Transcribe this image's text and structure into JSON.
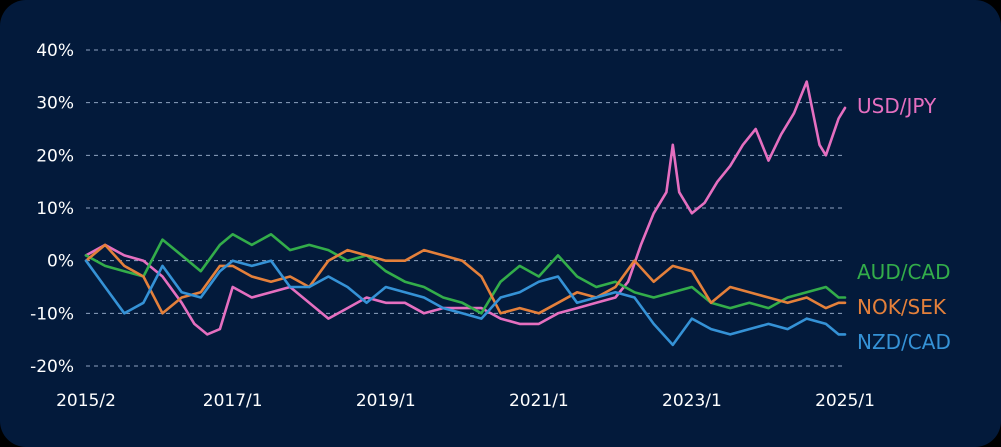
{
  "chart_data": {
    "type": "line",
    "title": "",
    "xlabel": "",
    "ylabel": "",
    "x_ticks": [
      "2015/2",
      "2017/1",
      "2019/1",
      "2021/1",
      "2023/1",
      "2025/1"
    ],
    "y_ticks": [
      "40%",
      "30%",
      "20%",
      "10%",
      "0%",
      "-10%",
      "-20%"
    ],
    "y_tick_values": [
      40,
      30,
      20,
      10,
      0,
      -10,
      -20
    ],
    "ylim": [
      -20,
      40
    ],
    "xlim": [
      "2015-02",
      "2025-01"
    ],
    "grid": true,
    "legend": "inline-right",
    "series": [
      {
        "name": "USD/JPY",
        "color": "#e56fc0",
        "points": [
          [
            "2015-02",
            1
          ],
          [
            "2015-05",
            3
          ],
          [
            "2015-08",
            1
          ],
          [
            "2015-11",
            0
          ],
          [
            "2016-02",
            -3
          ],
          [
            "2016-05",
            -8
          ],
          [
            "2016-07",
            -12
          ],
          [
            "2016-09",
            -14
          ],
          [
            "2016-11",
            -13
          ],
          [
            "2017-01",
            -5
          ],
          [
            "2017-04",
            -7
          ],
          [
            "2017-07",
            -6
          ],
          [
            "2017-10",
            -5
          ],
          [
            "2018-01",
            -8
          ],
          [
            "2018-04",
            -11
          ],
          [
            "2018-07",
            -9
          ],
          [
            "2018-10",
            -7
          ],
          [
            "2019-01",
            -8
          ],
          [
            "2019-04",
            -8
          ],
          [
            "2019-07",
            -10
          ],
          [
            "2019-10",
            -9
          ],
          [
            "2020-01",
            -9
          ],
          [
            "2020-04",
            -9
          ],
          [
            "2020-07",
            -11
          ],
          [
            "2020-10",
            -12
          ],
          [
            "2021-01",
            -12
          ],
          [
            "2021-04",
            -10
          ],
          [
            "2021-07",
            -9
          ],
          [
            "2021-10",
            -8
          ],
          [
            "2022-01",
            -7
          ],
          [
            "2022-03",
            -4
          ],
          [
            "2022-05",
            3
          ],
          [
            "2022-07",
            9
          ],
          [
            "2022-09",
            13
          ],
          [
            "2022-10",
            22
          ],
          [
            "2022-11",
            13
          ],
          [
            "2023-01",
            9
          ],
          [
            "2023-03",
            11
          ],
          [
            "2023-05",
            15
          ],
          [
            "2023-07",
            18
          ],
          [
            "2023-09",
            22
          ],
          [
            "2023-11",
            25
          ],
          [
            "2024-01",
            19
          ],
          [
            "2024-03",
            24
          ],
          [
            "2024-05",
            28
          ],
          [
            "2024-07",
            34
          ],
          [
            "2024-09",
            22
          ],
          [
            "2024-10",
            20
          ],
          [
            "2024-12",
            27
          ],
          [
            "2025-01",
            29
          ]
        ]
      },
      {
        "name": "AUD/CAD",
        "color": "#33ad4a",
        "points": [
          [
            "2015-02",
            1
          ],
          [
            "2015-05",
            -1
          ],
          [
            "2015-08",
            -2
          ],
          [
            "2015-11",
            -3
          ],
          [
            "2016-02",
            4
          ],
          [
            "2016-05",
            1
          ],
          [
            "2016-08",
            -2
          ],
          [
            "2016-11",
            3
          ],
          [
            "2017-01",
            5
          ],
          [
            "2017-04",
            3
          ],
          [
            "2017-07",
            5
          ],
          [
            "2017-10",
            2
          ],
          [
            "2018-01",
            3
          ],
          [
            "2018-04",
            2
          ],
          [
            "2018-07",
            0
          ],
          [
            "2018-10",
            1
          ],
          [
            "2019-01",
            -2
          ],
          [
            "2019-04",
            -4
          ],
          [
            "2019-07",
            -5
          ],
          [
            "2019-10",
            -7
          ],
          [
            "2020-01",
            -8
          ],
          [
            "2020-04",
            -10
          ],
          [
            "2020-07",
            -4
          ],
          [
            "2020-10",
            -1
          ],
          [
            "2021-01",
            -3
          ],
          [
            "2021-04",
            1
          ],
          [
            "2021-07",
            -3
          ],
          [
            "2021-10",
            -5
          ],
          [
            "2022-01",
            -4
          ],
          [
            "2022-04",
            -6
          ],
          [
            "2022-07",
            -7
          ],
          [
            "2022-10",
            -6
          ],
          [
            "2023-01",
            -5
          ],
          [
            "2023-04",
            -8
          ],
          [
            "2023-07",
            -9
          ],
          [
            "2023-10",
            -8
          ],
          [
            "2024-01",
            -9
          ],
          [
            "2024-04",
            -7
          ],
          [
            "2024-07",
            -6
          ],
          [
            "2024-10",
            -5
          ],
          [
            "2024-12",
            -7
          ],
          [
            "2025-01",
            -7
          ]
        ]
      },
      {
        "name": "NOK/SEK",
        "color": "#e4803b",
        "points": [
          [
            "2015-02",
            0
          ],
          [
            "2015-05",
            3
          ],
          [
            "2015-08",
            -1
          ],
          [
            "2015-11",
            -3
          ],
          [
            "2016-02",
            -10
          ],
          [
            "2016-05",
            -7
          ],
          [
            "2016-08",
            -6
          ],
          [
            "2016-11",
            -1
          ],
          [
            "2017-01",
            -1
          ],
          [
            "2017-04",
            -3
          ],
          [
            "2017-07",
            -4
          ],
          [
            "2017-10",
            -3
          ],
          [
            "2018-01",
            -5
          ],
          [
            "2018-04",
            0
          ],
          [
            "2018-07",
            2
          ],
          [
            "2018-10",
            1
          ],
          [
            "2019-01",
            0
          ],
          [
            "2019-04",
            0
          ],
          [
            "2019-07",
            2
          ],
          [
            "2019-10",
            1
          ],
          [
            "2020-01",
            0
          ],
          [
            "2020-04",
            -3
          ],
          [
            "2020-07",
            -10
          ],
          [
            "2020-10",
            -9
          ],
          [
            "2021-01",
            -10
          ],
          [
            "2021-04",
            -8
          ],
          [
            "2021-07",
            -6
          ],
          [
            "2021-10",
            -7
          ],
          [
            "2022-01",
            -5
          ],
          [
            "2022-04",
            0
          ],
          [
            "2022-07",
            -4
          ],
          [
            "2022-10",
            -1
          ],
          [
            "2023-01",
            -2
          ],
          [
            "2023-04",
            -8
          ],
          [
            "2023-07",
            -5
          ],
          [
            "2023-10",
            -6
          ],
          [
            "2024-01",
            -7
          ],
          [
            "2024-04",
            -8
          ],
          [
            "2024-07",
            -7
          ],
          [
            "2024-10",
            -9
          ],
          [
            "2024-12",
            -8
          ],
          [
            "2025-01",
            -8
          ]
        ]
      },
      {
        "name": "NZD/CAD",
        "color": "#3592d6",
        "points": [
          [
            "2015-02",
            0
          ],
          [
            "2015-05",
            -5
          ],
          [
            "2015-08",
            -10
          ],
          [
            "2015-11",
            -8
          ],
          [
            "2016-02",
            -1
          ],
          [
            "2016-05",
            -6
          ],
          [
            "2016-08",
            -7
          ],
          [
            "2016-11",
            -2
          ],
          [
            "2017-01",
            0
          ],
          [
            "2017-04",
            -1
          ],
          [
            "2017-07",
            0
          ],
          [
            "2017-10",
            -5
          ],
          [
            "2018-01",
            -5
          ],
          [
            "2018-04",
            -3
          ],
          [
            "2018-07",
            -5
          ],
          [
            "2018-10",
            -8
          ],
          [
            "2019-01",
            -5
          ],
          [
            "2019-04",
            -6
          ],
          [
            "2019-07",
            -7
          ],
          [
            "2019-10",
            -9
          ],
          [
            "2020-01",
            -10
          ],
          [
            "2020-04",
            -11
          ],
          [
            "2020-07",
            -7
          ],
          [
            "2020-10",
            -6
          ],
          [
            "2021-01",
            -4
          ],
          [
            "2021-04",
            -3
          ],
          [
            "2021-07",
            -8
          ],
          [
            "2021-10",
            -7
          ],
          [
            "2022-01",
            -6
          ],
          [
            "2022-04",
            -7
          ],
          [
            "2022-07",
            -12
          ],
          [
            "2022-10",
            -16
          ],
          [
            "2023-01",
            -11
          ],
          [
            "2023-04",
            -13
          ],
          [
            "2023-07",
            -14
          ],
          [
            "2023-10",
            -13
          ],
          [
            "2024-01",
            -12
          ],
          [
            "2024-04",
            -13
          ],
          [
            "2024-07",
            -11
          ],
          [
            "2024-10",
            -12
          ],
          [
            "2024-12",
            -14
          ],
          [
            "2025-01",
            -14
          ]
        ]
      }
    ]
  }
}
